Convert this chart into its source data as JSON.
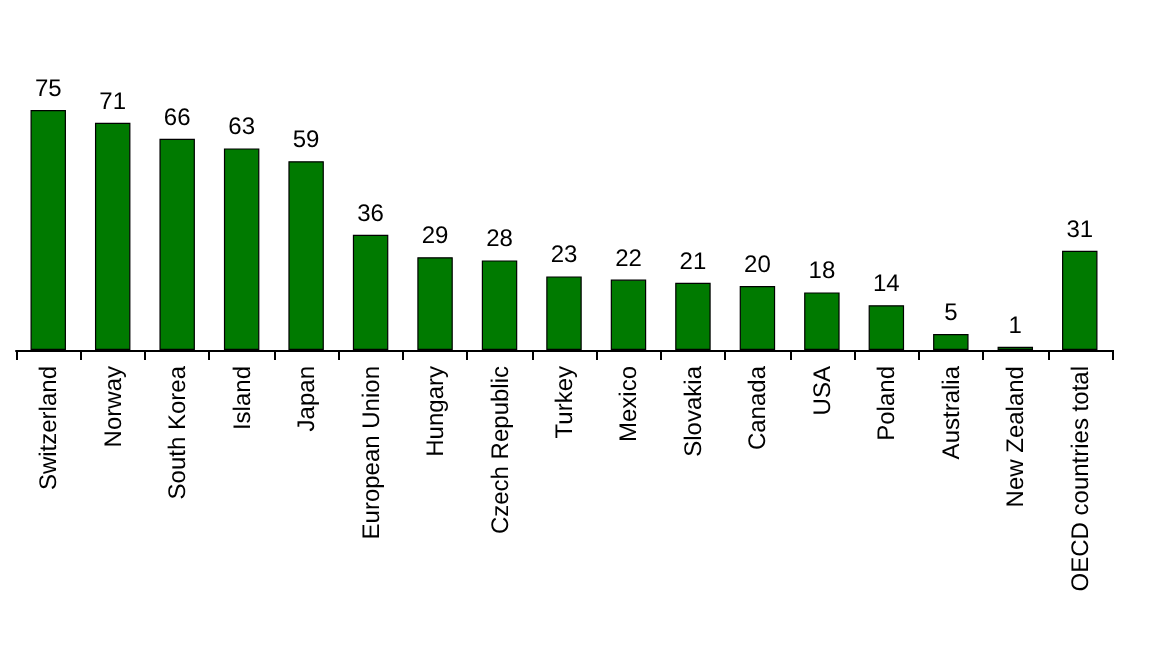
{
  "chart_data": {
    "type": "bar",
    "categories": [
      "Switzerland",
      "Norway",
      "South Korea",
      "Island",
      "Japan",
      "European Union",
      "Hungary",
      "Czech Republic",
      "Turkey",
      "Mexico",
      "Slovakia",
      "Canada",
      "USA",
      "Poland",
      "Australia",
      "New Zealand",
      "OECD countries total"
    ],
    "values": [
      75,
      71,
      66,
      63,
      59,
      36,
      29,
      28,
      23,
      22,
      21,
      20,
      18,
      14,
      5,
      1,
      31
    ],
    "color": "#007a00",
    "data_labels": true
  }
}
